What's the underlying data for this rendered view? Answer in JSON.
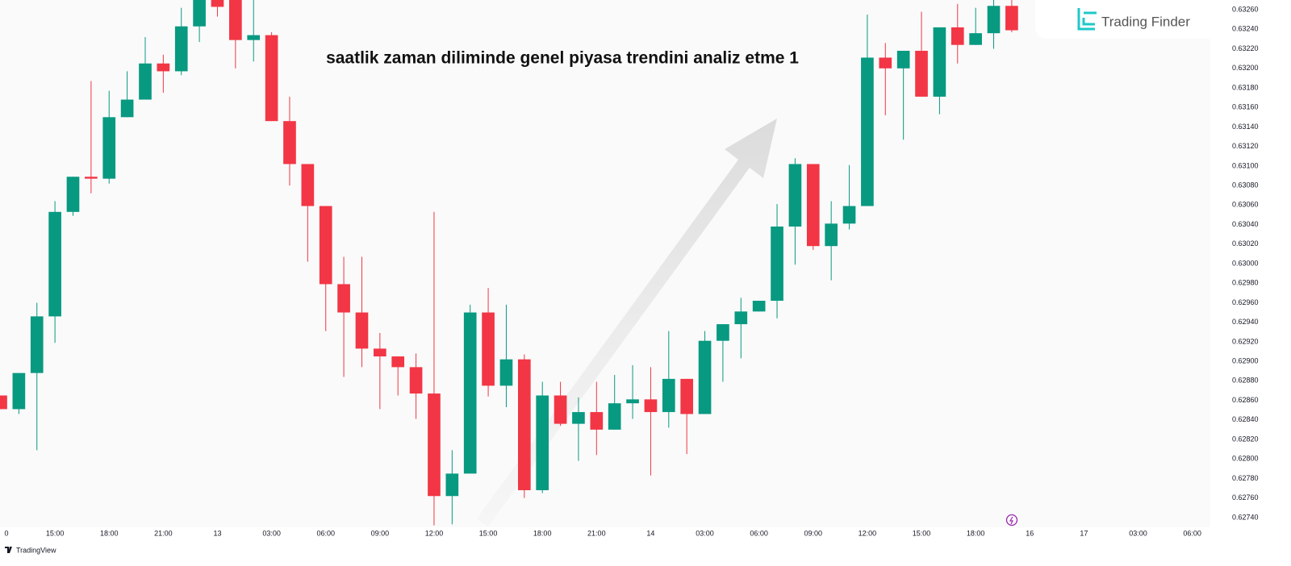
{
  "chart_data": {
    "type": "candlestick",
    "title": "saatlik zaman diliminde genel piyasa trendini analiz etme 1",
    "up_color": "#089981",
    "down_color": "#f23645",
    "open": [
      0.62865,
      0.62851,
      0.62888,
      0.62946,
      0.63053,
      0.63089,
      0.63087,
      0.6315,
      0.63168,
      0.63205,
      0.63197,
      0.63243,
      0.6327,
      0.6327,
      0.63229,
      0.63234,
      0.63146,
      0.63102,
      0.63059,
      0.62979,
      0.6295,
      0.62913,
      0.62905,
      0.62894,
      0.62867,
      0.62762,
      0.62785,
      0.6295,
      0.62875,
      0.62902,
      0.62768,
      0.62865,
      0.62836,
      0.62848,
      0.6283,
      0.62857,
      0.62861,
      0.62848,
      0.62882,
      0.62846,
      0.62921,
      0.62938,
      0.62951,
      0.62962,
      0.63038,
      0.63102,
      0.63018,
      0.63041,
      0.63059,
      0.63211,
      0.632,
      0.63218,
      0.63171,
      0.63242,
      0.63224,
      0.63236,
      0.63264
    ],
    "high": [
      0.62865,
      0.62888,
      0.6296,
      0.63064,
      0.63089,
      0.63187,
      0.63177,
      0.63197,
      0.63232,
      0.63214,
      0.63262,
      0.6327,
      0.6327,
      0.6327,
      0.6327,
      0.63237,
      0.63171,
      0.63102,
      0.63059,
      0.63007,
      0.63007,
      0.62929,
      0.62905,
      0.62908,
      0.63053,
      0.62809,
      0.62958,
      0.62975,
      0.62958,
      0.62907,
      0.62879,
      0.62879,
      0.62863,
      0.62879,
      0.62886,
      0.62896,
      0.62894,
      0.62931,
      0.62882,
      0.62931,
      0.62938,
      0.62965,
      0.62962,
      0.63061,
      0.63108,
      0.63102,
      0.63064,
      0.63101,
      0.63255,
      0.63226,
      0.63218,
      0.63258,
      0.63242,
      0.63266,
      0.63262,
      0.6327,
      0.6327
    ],
    "low": [
      0.62851,
      0.62846,
      0.62809,
      0.62919,
      0.63049,
      0.63072,
      0.63082,
      0.6315,
      0.63168,
      0.63175,
      0.63193,
      0.63227,
      0.63253,
      0.632,
      0.63207,
      0.63146,
      0.6308,
      0.63002,
      0.62931,
      0.62884,
      0.62894,
      0.62851,
      0.62865,
      0.62841,
      0.62732,
      0.62733,
      0.62785,
      0.62864,
      0.62853,
      0.6276,
      0.62765,
      0.62834,
      0.62798,
      0.62804,
      0.6283,
      0.62841,
      0.62783,
      0.62832,
      0.62805,
      0.62846,
      0.62879,
      0.62903,
      0.62951,
      0.62944,
      0.62999,
      0.63014,
      0.62983,
      0.63035,
      0.63059,
      0.63152,
      0.63127,
      0.63171,
      0.63153,
      0.63205,
      0.63224,
      0.6322,
      0.63237
    ],
    "close": [
      0.62851,
      0.62888,
      0.62946,
      0.63053,
      0.63089,
      0.63087,
      0.6315,
      0.63168,
      0.63205,
      0.63197,
      0.63243,
      0.6327,
      0.63263,
      0.63229,
      0.63234,
      0.63146,
      0.63102,
      0.63059,
      0.62979,
      0.6295,
      0.62913,
      0.62905,
      0.62894,
      0.62867,
      0.62762,
      0.62785,
      0.6295,
      0.62875,
      0.62902,
      0.62768,
      0.62865,
      0.62836,
      0.62848,
      0.6283,
      0.62857,
      0.62861,
      0.62848,
      0.62882,
      0.62846,
      0.62921,
      0.62938,
      0.62951,
      0.62962,
      0.63038,
      0.63102,
      0.63018,
      0.63041,
      0.63059,
      0.63211,
      0.632,
      0.63218,
      0.63171,
      0.63242,
      0.63224,
      0.63236,
      0.63264,
      0.63239
    ],
    "ylim": [
      0.6273,
      0.6327
    ],
    "yticks": [
      {
        "value": 0.6326,
        "label": "0.63260"
      },
      {
        "value": 0.6324,
        "label": "0.63240"
      },
      {
        "value": 0.6322,
        "label": "0.63220"
      },
      {
        "value": 0.632,
        "label": "0.63200"
      },
      {
        "value": 0.6318,
        "label": "0.63180"
      },
      {
        "value": 0.6316,
        "label": "0.63160"
      },
      {
        "value": 0.6314,
        "label": "0.63140"
      },
      {
        "value": 0.6312,
        "label": "0.63120"
      },
      {
        "value": 0.631,
        "label": "0.63100"
      },
      {
        "value": 0.6308,
        "label": "0.63080"
      },
      {
        "value": 0.6306,
        "label": "0.63060"
      },
      {
        "value": 0.6304,
        "label": "0.63040"
      },
      {
        "value": 0.6302,
        "label": "0.63020"
      },
      {
        "value": 0.63,
        "label": "0.63000"
      },
      {
        "value": 0.6298,
        "label": "0.62980"
      },
      {
        "value": 0.6296,
        "label": "0.62960"
      },
      {
        "value": 0.6294,
        "label": "0.62940"
      },
      {
        "value": 0.6292,
        "label": "0.62920"
      },
      {
        "value": 0.629,
        "label": "0.62900"
      },
      {
        "value": 0.6288,
        "label": "0.62880"
      },
      {
        "value": 0.6286,
        "label": "0.62860"
      },
      {
        "value": 0.6284,
        "label": "0.62840"
      },
      {
        "value": 0.6282,
        "label": "0.62820"
      },
      {
        "value": 0.628,
        "label": "0.62800"
      },
      {
        "value": 0.6278,
        "label": "0.62780"
      },
      {
        "value": 0.6276,
        "label": "0.62760"
      },
      {
        "value": 0.6274,
        "label": "0.62740"
      }
    ],
    "xlim": [
      0,
      67
    ],
    "xticks": [
      0,
      {
        "value": 3,
        "label": "15:00"
      },
      {
        "value": 6,
        "label": "18:00"
      },
      {
        "value": 9,
        "label": "21:00"
      },
      {
        "value": 12,
        "label": "13"
      },
      {
        "value": 15,
        "label": "03:00"
      },
      {
        "value": 18,
        "label": "06:00"
      },
      {
        "value": 21,
        "label": "09:00"
      },
      {
        "value": 24,
        "label": "12:00"
      },
      {
        "value": 27,
        "label": "15:00"
      },
      {
        "value": 30,
        "label": "18:00"
      },
      {
        "value": 33,
        "label": "21:00"
      },
      {
        "value": 36,
        "label": "14"
      },
      {
        "value": 39,
        "label": "03:00"
      },
      {
        "value": 42,
        "label": "06:00"
      },
      {
        "value": 45,
        "label": "09:00"
      },
      {
        "value": 48,
        "label": "12:00"
      },
      {
        "value": 51,
        "label": "15:00"
      },
      {
        "value": 54,
        "label": "18:00"
      },
      {
        "value": 57,
        "label": "16"
      },
      {
        "value": 60,
        "label": "17"
      },
      {
        "value": 63,
        "label": "03:00"
      },
      {
        "value": 66,
        "label": "06:00"
      }
    ]
  },
  "branding": {
    "logo": "Trading Finder",
    "footer": "TradingView"
  }
}
